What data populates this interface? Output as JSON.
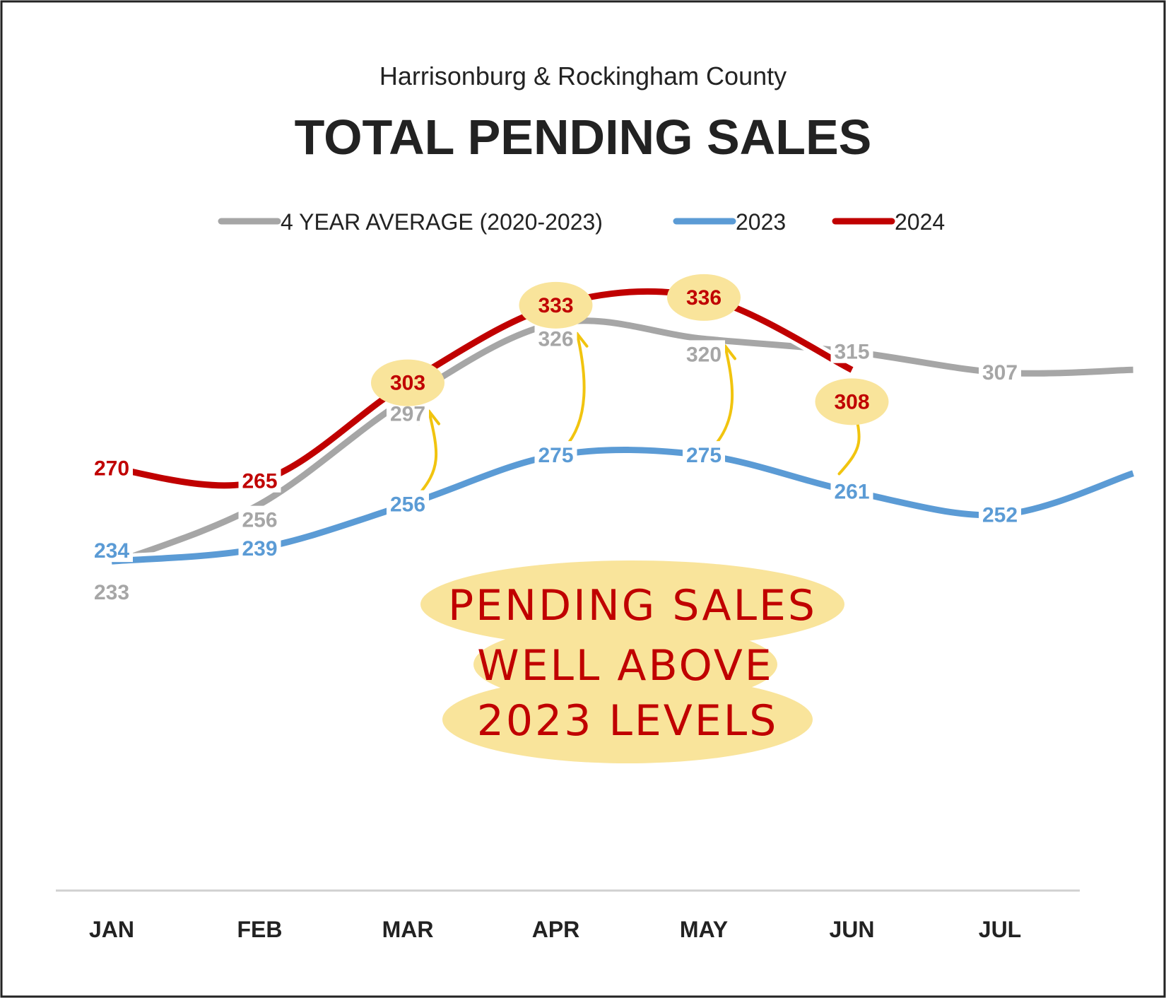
{
  "header": {
    "subtitle": "Harrisonburg & Rockingham County",
    "title": "TOTAL PENDING SALES"
  },
  "legend": [
    {
      "label": "4 YEAR AVERAGE (2020-2023)",
      "color": "#a6a6a6"
    },
    {
      "label": "2023",
      "color": "#5b9bd5"
    },
    {
      "label": "2024",
      "color": "#c00000"
    }
  ],
  "annotation": {
    "lines": [
      "PENDING SALES",
      "WELL ABOVE",
      "2023 LEVELS"
    ],
    "highlight_color": "#f9e49b",
    "arrow_color": "#f1c40f"
  },
  "chart_data": {
    "type": "line",
    "categories": [
      "JAN",
      "FEB",
      "MAR",
      "APR",
      "MAY",
      "JUN",
      "JUL"
    ],
    "series": [
      {
        "name": "4 YEAR AVERAGE (2020-2023)",
        "color": "#a6a6a6",
        "values": [
          233,
          256,
          297,
          326,
          320,
          315,
          307
        ],
        "tail_value": 308
      },
      {
        "name": "2023",
        "color": "#5b9bd5",
        "values": [
          234,
          239,
          256,
          275,
          275,
          261,
          252
        ],
        "tail_value": 268
      },
      {
        "name": "2024",
        "color": "#c00000",
        "values": [
          270,
          265,
          303,
          333,
          336,
          308,
          null
        ]
      }
    ],
    "highlighted_labels": {
      "series": "2024",
      "categories": [
        "MAR",
        "APR",
        "MAY",
        "JUN"
      ]
    },
    "arrows_from_2023_to_2024": [
      "MAR",
      "APR",
      "MAY",
      "JUN"
    ],
    "grid": false,
    "legend_position": "top",
    "ylim": [
      150,
      380
    ]
  }
}
